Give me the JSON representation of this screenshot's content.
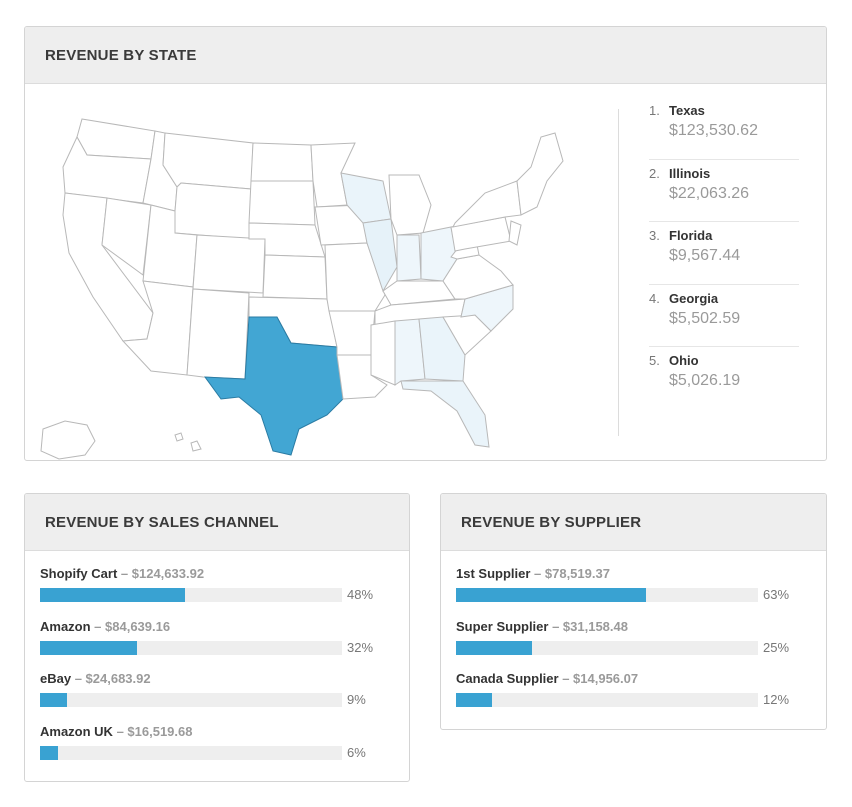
{
  "state_panel": {
    "title": "REVENUE BY STATE",
    "map_colors": {
      "highlight": "#42a6d3",
      "light": "#e6f2f9",
      "lighter": "#eef6fb",
      "default": "#ffffff",
      "stroke": "#b8b8b8"
    },
    "ranking": [
      {
        "rank": "1.",
        "state": "Texas",
        "value": "$123,530.62"
      },
      {
        "rank": "2.",
        "state": "Illinois",
        "value": "$22,063.26"
      },
      {
        "rank": "3.",
        "state": "Florida",
        "value": "$9,567.44"
      },
      {
        "rank": "4.",
        "state": "Georgia",
        "value": "$5,502.59"
      },
      {
        "rank": "5.",
        "state": "Ohio",
        "value": "$5,026.19"
      }
    ]
  },
  "channel_panel": {
    "title": "REVENUE BY SALES CHANNEL",
    "bar_color": "#39a2d2",
    "items": [
      {
        "name": "Shopify Cart",
        "amount": " – $124,633.92",
        "pct": "48%",
        "fraction": 0.48
      },
      {
        "name": "Amazon",
        "amount": " – $84,639.16",
        "pct": "32%",
        "fraction": 0.32
      },
      {
        "name": "eBay",
        "amount": " – $24,683.92",
        "pct": "9%",
        "fraction": 0.09
      },
      {
        "name": "Amazon UK",
        "amount": " – $16,519.68",
        "pct": "6%",
        "fraction": 0.06
      }
    ]
  },
  "supplier_panel": {
    "title": "REVENUE BY SUPPLIER",
    "bar_color": "#39a2d2",
    "items": [
      {
        "name": "1st Supplier",
        "amount": " – $78,519.37",
        "pct": "63%",
        "fraction": 0.63
      },
      {
        "name": "Super Supplier",
        "amount": " – $31,158.48",
        "pct": "25%",
        "fraction": 0.25
      },
      {
        "name": "Canada Supplier",
        "amount": " – $14,956.07",
        "pct": "12%",
        "fraction": 0.12
      }
    ]
  }
}
